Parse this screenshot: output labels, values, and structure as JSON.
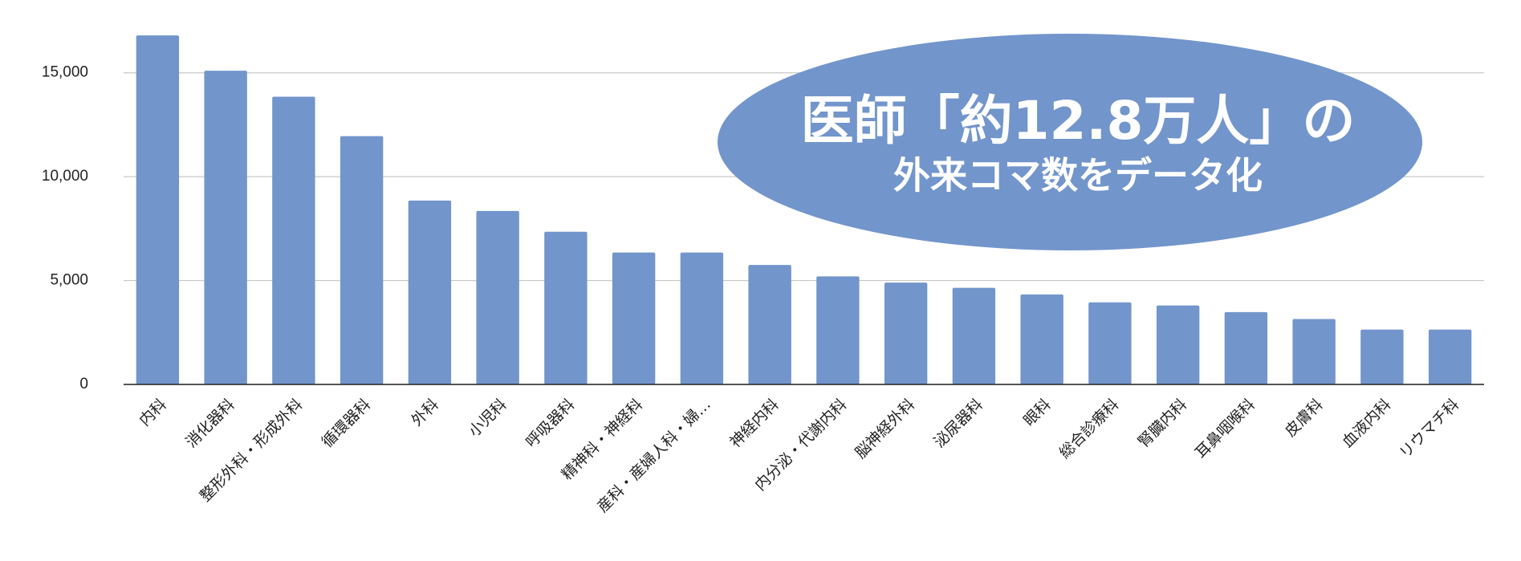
{
  "chart_data": {
    "type": "bar",
    "categories": [
      "内科",
      "消化器科",
      "整形外科・形成外科",
      "循環器科",
      "外科",
      "小児科",
      "呼吸器科",
      "精神科・神経科",
      "産科・産婦人科・婦…",
      "神経内科",
      "内分泌・代謝内科",
      "脳神経外科",
      "泌尿器科",
      "眼科",
      "総合診療科",
      "腎臓内科",
      "耳鼻咽喉科",
      "皮膚科",
      "血液内科",
      "リウマチ科"
    ],
    "values": [
      16800,
      15100,
      13850,
      11950,
      8850,
      8350,
      7350,
      6350,
      6350,
      5750,
      5200,
      4900,
      4650,
      4330,
      3950,
      3800,
      3480,
      3150,
      2640,
      2640
    ],
    "color": "#7295cb",
    "ylim": [
      0,
      17500
    ],
    "yticks": [
      {
        "value": 0,
        "label": "0"
      },
      {
        "value": 5000,
        "label": "5,000"
      },
      {
        "value": 10000,
        "label": "10,000"
      },
      {
        "value": 15000,
        "label": "15,000"
      }
    ],
    "grid": true,
    "annotations": [
      "医師「約12.8万人」の",
      "外来コマ数をデータ化"
    ]
  }
}
